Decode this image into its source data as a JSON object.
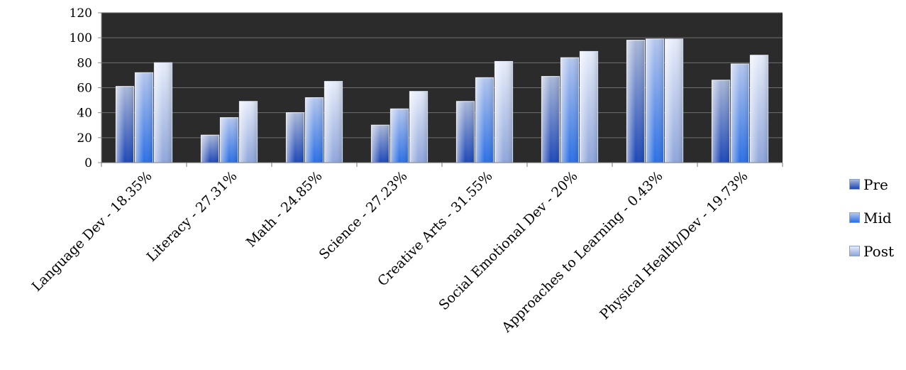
{
  "chart_data": {
    "type": "bar",
    "categories": [
      "Language Dev - 18.35%",
      "Literacy - 27.31%",
      "Math - 24.85%",
      "Science - 27.23%",
      "Creative Arts - 31.55%",
      "Social Emotional Dev - 20%",
      "Approaches to Learning - 0.43%",
      "Physical Health/Dev - 19.73%"
    ],
    "series": [
      {
        "name": "Pre",
        "values": [
          61,
          22,
          40,
          30,
          49,
          69,
          98,
          66
        ],
        "color": "#2f5fc4"
      },
      {
        "name": "Mid",
        "values": [
          72,
          36,
          52,
          43,
          68,
          84,
          99,
          79
        ],
        "color": "#3f86e8"
      },
      {
        "name": "Post",
        "values": [
          80,
          49,
          65,
          57,
          81,
          89,
          99,
          86
        ],
        "color": "#b9c9ee"
      }
    ],
    "ylim": [
      0,
      120
    ],
    "yticks": [
      "0",
      "20",
      "40",
      "60",
      "80",
      "100",
      "120"
    ],
    "grid": true,
    "plot_background": "#2b2b2b",
    "legend_position": "right",
    "title": "",
    "xlabel": "",
    "ylabel": ""
  }
}
